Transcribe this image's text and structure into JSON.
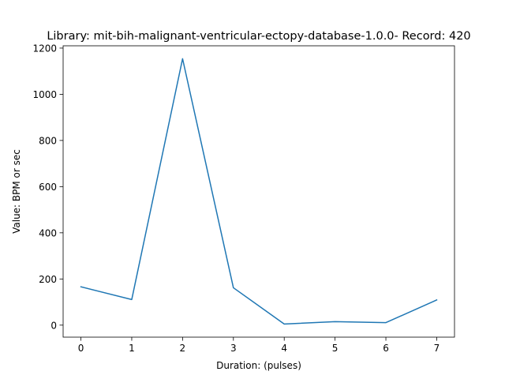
{
  "chart_data": {
    "type": "line",
    "title": "Library: mit-bih-malignant-ventricular-ectopy-database-1.0.0- Record: 420",
    "xlabel": "Duration: (pulses)",
    "ylabel": "Value: BPM or sec",
    "xlim": [
      -0.35,
      7.35
    ],
    "ylim": [
      -52,
      1210
    ],
    "xticks": [
      0,
      1,
      2,
      3,
      4,
      5,
      6,
      7
    ],
    "yticks": [
      0,
      200,
      400,
      600,
      800,
      1000,
      1200
    ],
    "grid": false,
    "series": [
      {
        "color": "#1f77b4",
        "x": [
          0,
          1,
          2,
          3,
          4,
          5,
          6,
          7
        ],
        "y": [
          166,
          111,
          1154,
          162,
          5,
          15,
          11,
          109
        ]
      }
    ]
  }
}
